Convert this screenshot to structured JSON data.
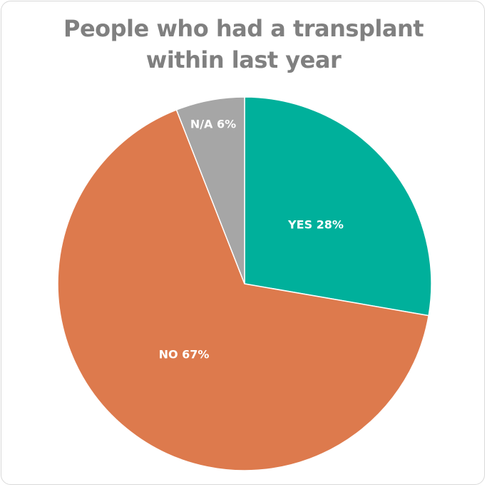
{
  "chart_data": {
    "type": "pie",
    "title_lines": [
      "People who had a transplant",
      "within last year"
    ],
    "categories": [
      "YES",
      "NO",
      "N/A"
    ],
    "values": [
      28,
      67,
      6
    ],
    "labels": [
      "YES 28%",
      "NO 67%",
      "N/A 6%"
    ],
    "colors": [
      "#00b09b",
      "#dd7a4d",
      "#a6a6a6"
    ],
    "start": "12 o'clock",
    "direction": "clockwise"
  }
}
